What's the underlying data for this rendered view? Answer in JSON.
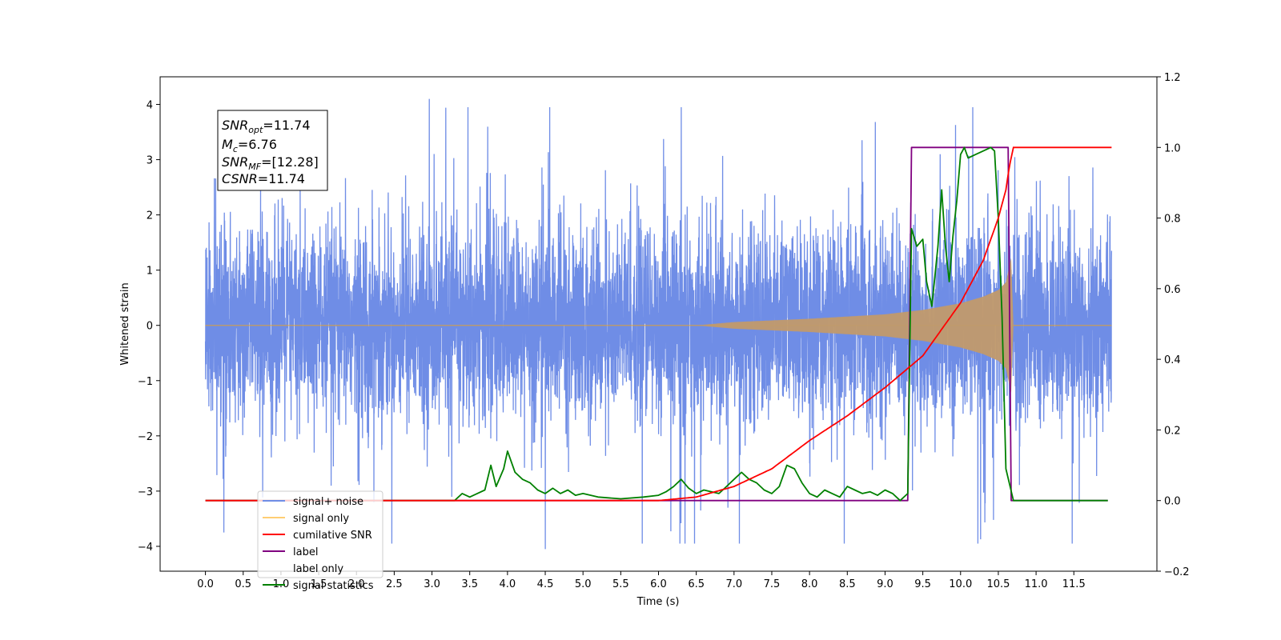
{
  "chart_data": {
    "type": "line",
    "xlabel": "Time (s)",
    "ylabel": "Whitened strain",
    "xlim": [
      -0.6,
      12.6
    ],
    "ylim": [
      -4.45,
      4.5
    ],
    "y2lim": [
      -0.2,
      1.2
    ],
    "x_ticks": [
      "0.0",
      "0.5",
      "1.0",
      "1.5",
      "2.0",
      "2.5",
      "3.0",
      "3.5",
      "4.0",
      "4.5",
      "5.0",
      "5.5",
      "6.0",
      "6.5",
      "7.0",
      "7.5",
      "8.0",
      "8.5",
      "9.0",
      "9.5",
      "10.0",
      "10.5",
      "11.0",
      "11.5"
    ],
    "y_ticks": [
      "4",
      "3",
      "2",
      "1",
      "0",
      "−1",
      "−2",
      "−3",
      "−4"
    ],
    "y2_ticks": [
      "1.2",
      "1.0",
      "0.8",
      "0.6",
      "0.4",
      "0.2",
      "0.0",
      "−0.2"
    ],
    "annotation": {
      "lines": [
        {
          "sym": "SNR",
          "sub": "opt",
          "val": "=11.74"
        },
        {
          "sym": "M",
          "sub": "c",
          "val": "=6.76"
        },
        {
          "sym": "SNR",
          "sub": "MF",
          "val": "=[12.28]"
        },
        {
          "sym": "CSNR",
          "sub": "",
          "val": "=11.74"
        }
      ]
    },
    "legend_position": "lower-left",
    "series": [
      {
        "name": "signal+ noise",
        "color": "#6f8de6",
        "axis": "left",
        "x_range": [
          0,
          12
        ],
        "noise_sigma": 0.85,
        "noise_peaks": [
          4.1,
          -4.05
        ]
      },
      {
        "name": "signal only",
        "color": "#ffa500",
        "axis": "left",
        "envelope": {
          "x": [
            6.5,
            7.0,
            8.0,
            9.0,
            9.5,
            10.0,
            10.3,
            10.5,
            10.6,
            10.67,
            10.7
          ],
          "amp": [
            0.0,
            0.06,
            0.12,
            0.2,
            0.28,
            0.4,
            0.52,
            0.64,
            0.78,
            1.22,
            0.0
          ]
        }
      },
      {
        "name": "cumilative SNR",
        "color": "#ff0000",
        "axis": "right",
        "x": [
          0.0,
          6.0,
          6.5,
          7.0,
          7.5,
          8.0,
          8.5,
          9.0,
          9.5,
          10.0,
          10.3,
          10.5,
          10.6,
          10.65,
          10.7,
          12.0
        ],
        "y": [
          0.0,
          0.0,
          0.01,
          0.04,
          0.09,
          0.17,
          0.24,
          0.32,
          0.41,
          0.56,
          0.68,
          0.8,
          0.88,
          0.95,
          1.0,
          1.0
        ]
      },
      {
        "name": "label",
        "color": "#800080",
        "axis": "right",
        "x": [
          0.0,
          9.3,
          9.35,
          10.63,
          10.67,
          11.95
        ],
        "y": [
          0.0,
          0.0,
          1.0,
          1.0,
          0.0,
          0.0
        ]
      },
      {
        "name": "label only",
        "color": "#c8c8c8",
        "axis": "right",
        "hidden": true,
        "x": [],
        "y": []
      },
      {
        "name": "signal statistics",
        "color": "#008000",
        "axis": "right",
        "x": [
          0.0,
          3.3,
          3.4,
          3.5,
          3.6,
          3.7,
          3.78,
          3.85,
          3.95,
          4.0,
          4.1,
          4.2,
          4.3,
          4.4,
          4.5,
          4.6,
          4.7,
          4.8,
          4.9,
          5.0,
          5.2,
          5.5,
          5.8,
          6.0,
          6.1,
          6.2,
          6.3,
          6.4,
          6.5,
          6.6,
          6.8,
          6.9,
          7.0,
          7.1,
          7.2,
          7.3,
          7.4,
          7.5,
          7.6,
          7.7,
          7.8,
          7.9,
          8.0,
          8.1,
          8.2,
          8.3,
          8.4,
          8.5,
          8.6,
          8.7,
          8.8,
          8.9,
          9.0,
          9.1,
          9.2,
          9.3,
          9.35,
          9.42,
          9.5,
          9.55,
          9.62,
          9.7,
          9.75,
          9.8,
          9.85,
          9.9,
          9.95,
          10.0,
          10.05,
          10.1,
          10.2,
          10.3,
          10.4,
          10.45,
          10.5,
          10.55,
          10.6,
          10.7,
          11.0,
          11.95
        ],
        "y": [
          0.0,
          0.0,
          0.02,
          0.01,
          0.02,
          0.03,
          0.1,
          0.04,
          0.09,
          0.14,
          0.08,
          0.06,
          0.05,
          0.03,
          0.02,
          0.035,
          0.02,
          0.03,
          0.015,
          0.02,
          0.01,
          0.005,
          0.01,
          0.015,
          0.025,
          0.04,
          0.06,
          0.035,
          0.02,
          0.03,
          0.02,
          0.04,
          0.06,
          0.08,
          0.06,
          0.05,
          0.03,
          0.02,
          0.04,
          0.1,
          0.09,
          0.05,
          0.02,
          0.01,
          0.03,
          0.02,
          0.01,
          0.04,
          0.03,
          0.02,
          0.025,
          0.015,
          0.03,
          0.02,
          0.0,
          0.02,
          0.77,
          0.72,
          0.74,
          0.62,
          0.55,
          0.72,
          0.88,
          0.72,
          0.62,
          0.75,
          0.85,
          0.98,
          1.0,
          0.97,
          0.98,
          0.99,
          1.0,
          0.99,
          0.8,
          0.52,
          0.09,
          0.0,
          0.0,
          0.0
        ]
      }
    ]
  }
}
